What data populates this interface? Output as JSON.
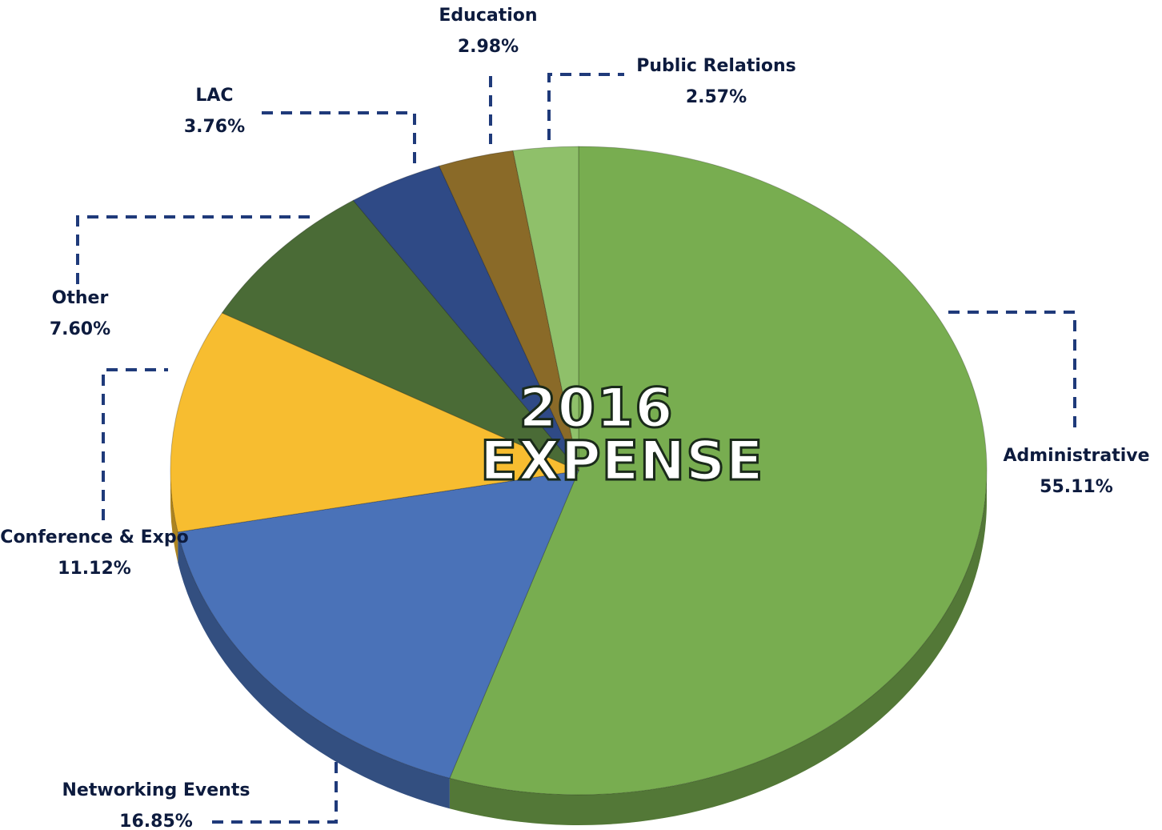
{
  "chart_data": {
    "type": "pie",
    "title": "2016 EXPENSE",
    "categories": [
      "Administrative",
      "Networking Events",
      "Conference & Expo",
      "Other",
      "LAC",
      "Education",
      "Public Relations"
    ],
    "values": [
      55.11,
      16.85,
      11.12,
      7.6,
      3.76,
      2.98,
      2.57
    ],
    "value_labels": [
      "55.11%",
      "16.85%",
      "11.12%",
      "7.60%",
      "3.76%",
      "2.98%",
      "2.57%"
    ],
    "colors": [
      "#78ad50",
      "#4a72b8",
      "#f7bd30",
      "#4a6b36",
      "#2f4a86",
      "#8a6a28",
      "#8fc06a"
    ]
  }
}
